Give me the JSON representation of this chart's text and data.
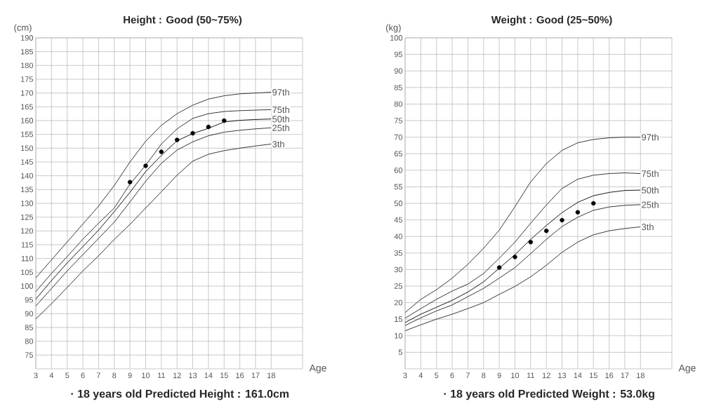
{
  "chart_data": [
    {
      "type": "line",
      "title": "Height : Good (50~75%)",
      "xlabel": "Age",
      "ylabel": "(cm)",
      "x": [
        3,
        4,
        5,
        6,
        7,
        8,
        9,
        10,
        11,
        12,
        13,
        14,
        15,
        16,
        17,
        18
      ],
      "xlim": [
        3,
        20
      ],
      "xticks": [
        3,
        4,
        5,
        6,
        7,
        8,
        9,
        10,
        11,
        12,
        13,
        14,
        15,
        16,
        17,
        18
      ],
      "ylim": [
        70,
        190
      ],
      "yticks": [
        75,
        80,
        85,
        90,
        95,
        100,
        105,
        110,
        115,
        120,
        125,
        130,
        135,
        140,
        145,
        150,
        155,
        160,
        165,
        170,
        175,
        180,
        185,
        190
      ],
      "grid": true,
      "series": [
        {
          "name": "97th",
          "color": "#222222",
          "values": [
            103,
            109.5,
            116,
            122.5,
            129,
            136.5,
            145,
            152.5,
            158.3,
            162.5,
            165.6,
            167.8,
            169,
            169.7,
            170,
            170.3
          ]
        },
        {
          "name": "75th",
          "color": "#222222",
          "values": [
            98,
            104.6,
            110.7,
            117,
            122.8,
            128.3,
            137,
            143.8,
            151.5,
            157,
            160.8,
            162.5,
            163.3,
            163.6,
            163.8,
            164
          ]
        },
        {
          "name": "50th",
          "color": "#000000",
          "values": [
            95.3,
            102,
            108.4,
            114.3,
            120.3,
            127,
            134,
            141.5,
            147.4,
            152.7,
            155.3,
            157.2,
            159.5,
            160.1,
            160.4,
            160.6
          ]
        },
        {
          "name": "25th",
          "color": "#222222",
          "values": [
            92.8,
            99.1,
            105.5,
            111.4,
            117.3,
            123.2,
            130.5,
            138,
            144.5,
            149.3,
            152.3,
            154.5,
            155.8,
            156.5,
            157,
            157.4
          ]
        },
        {
          "name": "3th",
          "color": "#222222",
          "values": [
            88.1,
            93.6,
            99.5,
            105.5,
            111,
            116.9,
            122.4,
            128.3,
            134.2,
            140.2,
            145.3,
            147.8,
            149.1,
            150,
            150.8,
            151.5
          ]
        },
        {
          "type": "scatter",
          "color": "#000000",
          "marker": "circle",
          "x": [
            9,
            10,
            11,
            12,
            13,
            14,
            15
          ],
          "values": [
            137.7,
            143.6,
            148.7,
            153,
            155.4,
            157.7,
            160
          ]
        }
      ],
      "annotations": [
        "· 18 years old Predicted Height : 161.0cm"
      ]
    },
    {
      "type": "line",
      "title": "Weight : Good (25~50%)",
      "xlabel": "Age",
      "ylabel": "(kg)",
      "x": [
        3,
        4,
        5,
        6,
        7,
        8,
        9,
        10,
        11,
        12,
        13,
        14,
        15,
        16,
        17,
        18
      ],
      "xlim": [
        3,
        20
      ],
      "xticks": [
        3,
        4,
        5,
        6,
        7,
        8,
        9,
        10,
        11,
        12,
        13,
        14,
        15,
        16,
        17,
        18
      ],
      "ylim": [
        0,
        100
      ],
      "yticks": [
        5,
        10,
        15,
        20,
        25,
        30,
        35,
        40,
        45,
        50,
        55,
        60,
        65,
        70,
        75,
        80,
        85,
        90,
        95,
        100
      ],
      "grid": true,
      "series": [
        {
          "name": "97th",
          "color": "#222222",
          "values": [
            17,
            21,
            23.9,
            27.4,
            31.6,
            36.4,
            41.9,
            49,
            56.5,
            62,
            66,
            68.3,
            69.3,
            69.8,
            70,
            70
          ]
        },
        {
          "name": "75th",
          "color": "#222222",
          "values": [
            15.3,
            18.2,
            21,
            23.5,
            25.6,
            28.8,
            33.4,
            38.3,
            44,
            49.5,
            54.5,
            57.3,
            58.5,
            59,
            59.2,
            59
          ]
        },
        {
          "name": "50th",
          "color": "#000000",
          "values": [
            14,
            16.5,
            18.6,
            20.7,
            23.2,
            26.3,
            30.4,
            34.5,
            39.1,
            43.3,
            47.2,
            50.3,
            52.3,
            53.3,
            53.9,
            54
          ]
        },
        {
          "name": "25th",
          "color": "#222222",
          "values": [
            13.1,
            15.4,
            17.5,
            19.3,
            21.8,
            24.3,
            27.4,
            30.6,
            34.8,
            39.1,
            43,
            45.8,
            47.9,
            48.9,
            49.4,
            49.6
          ]
        },
        {
          "name": "3th",
          "color": "#222222",
          "values": [
            11.5,
            13.3,
            15,
            16.5,
            18.2,
            20,
            22.5,
            24.9,
            27.8,
            31.3,
            35.2,
            38.3,
            40.5,
            41.7,
            42.4,
            42.9
          ]
        },
        {
          "type": "scatter",
          "color": "#000000",
          "marker": "circle",
          "x": [
            9,
            10,
            11,
            12,
            13,
            14,
            15
          ],
          "values": [
            30.6,
            33.8,
            38.3,
            41.7,
            44.9,
            47.3,
            50
          ]
        }
      ],
      "annotations": [
        "· 18 years old Predicted Weight : 53.0kg"
      ]
    }
  ]
}
